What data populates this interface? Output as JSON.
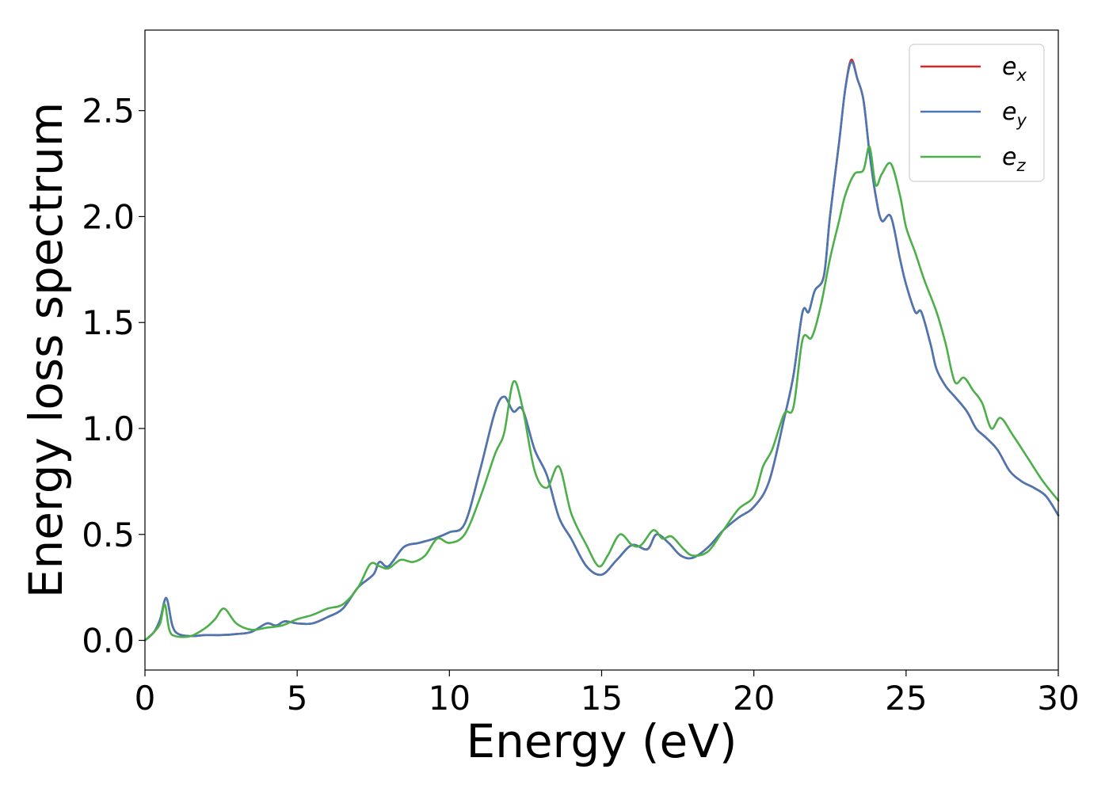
{
  "chart_data": {
    "type": "line",
    "title": "",
    "xlabel": "Energy (eV)",
    "ylabel": "Energy loss spectrum",
    "xlim": [
      0,
      30
    ],
    "ylim": [
      -0.14,
      2.88
    ],
    "xticks": [
      0,
      5,
      10,
      15,
      20,
      25,
      30
    ],
    "xtick_labels": [
      "0",
      "5",
      "10",
      "15",
      "20",
      "25",
      "30"
    ],
    "yticks": [
      0.0,
      0.5,
      1.0,
      1.5,
      2.0,
      2.5
    ],
    "ytick_labels": [
      "0.0",
      "0.5",
      "1.0",
      "1.5",
      "2.0",
      "2.5"
    ],
    "grid": false,
    "legend_position": "top-right",
    "series": [
      {
        "name": "e_x",
        "legend_base": "e",
        "legend_sub": "x",
        "color": "#d62728",
        "x": [
          0,
          0.3,
          0.5,
          0.7,
          0.9,
          1.1,
          1.5,
          2.0,
          2.5,
          3.0,
          3.5,
          4.0,
          4.3,
          4.6,
          5.0,
          5.5,
          6.0,
          6.5,
          7.0,
          7.5,
          7.7,
          8.0,
          8.5,
          9.0,
          9.5,
          10.0,
          10.5,
          11.0,
          11.5,
          11.8,
          12.1,
          12.4,
          12.8,
          13.2,
          13.6,
          14.0,
          14.5,
          15.0,
          15.5,
          16.0,
          16.5,
          16.8,
          17.2,
          17.6,
          18.0,
          18.5,
          19.0,
          19.5,
          20.0,
          20.5,
          21.0,
          21.3,
          21.6,
          21.8,
          22.0,
          22.3,
          22.5,
          22.8,
          23.0,
          23.2,
          23.4,
          23.6,
          23.8,
          24.0,
          24.2,
          24.5,
          24.8,
          25.0,
          25.3,
          25.5,
          25.8,
          26.0,
          26.3,
          26.6,
          27.0,
          27.3,
          27.6,
          28.0,
          28.4,
          28.8,
          29.2,
          29.6,
          30.0
        ],
        "y": [
          0.0,
          0.04,
          0.1,
          0.2,
          0.07,
          0.03,
          0.02,
          0.025,
          0.025,
          0.03,
          0.04,
          0.08,
          0.07,
          0.09,
          0.08,
          0.08,
          0.11,
          0.15,
          0.25,
          0.31,
          0.37,
          0.35,
          0.44,
          0.46,
          0.48,
          0.51,
          0.55,
          0.8,
          1.08,
          1.15,
          1.08,
          1.09,
          0.9,
          0.78,
          0.58,
          0.48,
          0.35,
          0.31,
          0.38,
          0.45,
          0.43,
          0.5,
          0.46,
          0.4,
          0.39,
          0.44,
          0.52,
          0.58,
          0.63,
          0.75,
          1.05,
          1.25,
          1.55,
          1.55,
          1.65,
          1.72,
          2.0,
          2.35,
          2.6,
          2.74,
          2.65,
          2.55,
          2.3,
          2.1,
          1.98,
          2.0,
          1.8,
          1.68,
          1.55,
          1.55,
          1.4,
          1.28,
          1.2,
          1.15,
          1.08,
          1.0,
          0.96,
          0.9,
          0.8,
          0.75,
          0.72,
          0.68,
          0.59
        ]
      },
      {
        "name": "e_y",
        "legend_base": "e",
        "legend_sub": "y",
        "color": "#4a76b2",
        "x": [
          0,
          0.3,
          0.5,
          0.7,
          0.9,
          1.1,
          1.5,
          2.0,
          2.5,
          3.0,
          3.5,
          4.0,
          4.3,
          4.6,
          5.0,
          5.5,
          6.0,
          6.5,
          7.0,
          7.5,
          7.7,
          8.0,
          8.5,
          9.0,
          9.5,
          10.0,
          10.5,
          11.0,
          11.5,
          11.8,
          12.1,
          12.4,
          12.8,
          13.2,
          13.6,
          14.0,
          14.5,
          15.0,
          15.5,
          16.0,
          16.5,
          16.8,
          17.2,
          17.6,
          18.0,
          18.5,
          19.0,
          19.5,
          20.0,
          20.5,
          21.0,
          21.3,
          21.6,
          21.8,
          22.0,
          22.3,
          22.5,
          22.8,
          23.0,
          23.2,
          23.4,
          23.6,
          23.8,
          24.0,
          24.2,
          24.5,
          24.8,
          25.0,
          25.3,
          25.5,
          25.8,
          26.0,
          26.3,
          26.6,
          27.0,
          27.3,
          27.6,
          28.0,
          28.4,
          28.8,
          29.2,
          29.6,
          30.0
        ],
        "y": [
          0.0,
          0.04,
          0.1,
          0.2,
          0.07,
          0.03,
          0.02,
          0.025,
          0.025,
          0.03,
          0.04,
          0.08,
          0.07,
          0.09,
          0.08,
          0.08,
          0.11,
          0.15,
          0.25,
          0.31,
          0.37,
          0.35,
          0.44,
          0.46,
          0.48,
          0.51,
          0.55,
          0.8,
          1.08,
          1.15,
          1.08,
          1.09,
          0.9,
          0.78,
          0.58,
          0.48,
          0.35,
          0.31,
          0.38,
          0.45,
          0.43,
          0.5,
          0.46,
          0.4,
          0.39,
          0.44,
          0.52,
          0.58,
          0.63,
          0.75,
          1.05,
          1.25,
          1.55,
          1.55,
          1.65,
          1.72,
          2.0,
          2.35,
          2.6,
          2.73,
          2.65,
          2.55,
          2.3,
          2.1,
          1.98,
          2.0,
          1.8,
          1.68,
          1.55,
          1.55,
          1.4,
          1.28,
          1.2,
          1.15,
          1.08,
          1.0,
          0.96,
          0.9,
          0.8,
          0.75,
          0.72,
          0.68,
          0.59
        ]
      },
      {
        "name": "e_z",
        "legend_base": "e",
        "legend_sub": "z",
        "color": "#4daf4a",
        "x": [
          0,
          0.3,
          0.5,
          0.65,
          0.8,
          1.0,
          1.5,
          2.0,
          2.3,
          2.6,
          3.0,
          3.5,
          4.0,
          4.5,
          5.0,
          5.5,
          6.0,
          6.5,
          7.0,
          7.4,
          7.7,
          8.0,
          8.4,
          8.8,
          9.2,
          9.6,
          10.0,
          10.5,
          11.0,
          11.5,
          11.8,
          12.1,
          12.4,
          12.8,
          13.2,
          13.6,
          14.0,
          14.5,
          14.9,
          15.2,
          15.6,
          16.0,
          16.3,
          16.7,
          17.0,
          17.3,
          17.7,
          18.0,
          18.5,
          19.0,
          19.5,
          20.0,
          20.3,
          20.6,
          21.0,
          21.3,
          21.6,
          21.9,
          22.2,
          22.5,
          22.8,
          23.0,
          23.3,
          23.6,
          23.8,
          24.0,
          24.2,
          24.5,
          24.8,
          25.0,
          25.3,
          25.6,
          26.0,
          26.3,
          26.6,
          26.9,
          27.2,
          27.5,
          27.8,
          28.1,
          28.5,
          29.0,
          29.5,
          30.0
        ],
        "y": [
          0.0,
          0.04,
          0.08,
          0.17,
          0.05,
          0.02,
          0.02,
          0.06,
          0.1,
          0.15,
          0.08,
          0.05,
          0.06,
          0.07,
          0.1,
          0.12,
          0.15,
          0.17,
          0.25,
          0.36,
          0.35,
          0.34,
          0.38,
          0.37,
          0.4,
          0.48,
          0.46,
          0.5,
          0.67,
          0.88,
          0.98,
          1.22,
          1.1,
          0.8,
          0.72,
          0.82,
          0.6,
          0.45,
          0.35,
          0.4,
          0.5,
          0.45,
          0.45,
          0.52,
          0.48,
          0.49,
          0.43,
          0.4,
          0.42,
          0.52,
          0.62,
          0.68,
          0.82,
          0.9,
          1.07,
          1.1,
          1.42,
          1.43,
          1.58,
          1.8,
          1.98,
          2.1,
          2.2,
          2.22,
          2.33,
          2.15,
          2.2,
          2.25,
          2.1,
          1.95,
          1.83,
          1.7,
          1.55,
          1.4,
          1.22,
          1.24,
          1.18,
          1.12,
          1.0,
          1.05,
          0.97,
          0.86,
          0.75,
          0.66
        ]
      }
    ]
  }
}
